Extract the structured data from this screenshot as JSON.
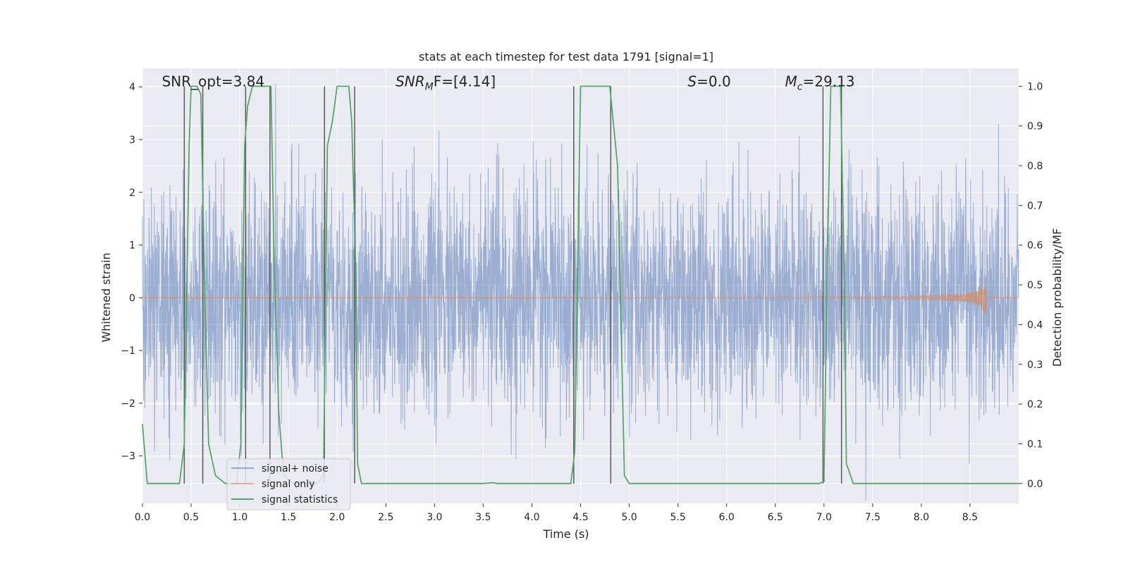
{
  "chart_data": {
    "type": "line",
    "title": "stats at each timestep for test data 1791 [signal=1]",
    "xlabel": "Time (s)",
    "ylabel": "Whitened strain",
    "y2label": "Detection probability/MF",
    "xlim": [
      0.0,
      9.0
    ],
    "ylim": [
      -3.9,
      4.35
    ],
    "y2lim": [
      -0.05,
      1.045
    ],
    "x_ticks": [
      "0.0",
      "0.5",
      "1.0",
      "1.5",
      "2.0",
      "2.5",
      "3.0",
      "3.5",
      "4.0",
      "4.5",
      "5.0",
      "5.5",
      "6.0",
      "6.5",
      "7.0",
      "7.5",
      "8.0",
      "8.5"
    ],
    "y_ticks": [
      "4",
      "3",
      "2",
      "1",
      "0",
      "−1",
      "−2",
      "−3"
    ],
    "y2_ticks": [
      "1.0",
      "0.9",
      "0.8",
      "0.7",
      "0.6",
      "0.5",
      "0.4",
      "0.3",
      "0.2",
      "0.1",
      "0.0"
    ],
    "grid": true,
    "legend_position": "lower-left",
    "annotations": [
      {
        "label": "SNR_opt=3.84",
        "prefix": "SNR_opt=3.84",
        "sym": "",
        "sub": "",
        "suffix": "",
        "x": 0.2,
        "y": 4.1
      },
      {
        "label": "SNR_MF=[4.14]",
        "prefix": "",
        "sym": "SNR",
        "sub": "M",
        "suffix": "F=[4.14]",
        "x": 2.6,
        "y": 4.1
      },
      {
        "label": "S=0.0",
        "prefix": "",
        "sym": "S",
        "sub": "",
        "suffix": "=0.0",
        "x": 5.6,
        "y": 4.1
      },
      {
        "label": "M_c=29.13",
        "prefix": "",
        "sym": "M",
        "sub": "c",
        "suffix": "=29.13",
        "x": 6.6,
        "y": 4.1
      }
    ],
    "series": [
      {
        "name": "signal+ noise",
        "color": "#4c72b0",
        "axis": "left",
        "description": "whitened noisy strain, roughly Gaussian around 0 with amplitude ~1.5, peaks to about +/-3.5",
        "noise_std": 1.05,
        "x_range": [
          0.0,
          9.0
        ]
      },
      {
        "name": "signal only",
        "color": "#dd8452",
        "axis": "left",
        "chirp_start": 4.4,
        "chirp_end": 8.67,
        "peak_amplitude": 0.9
      },
      {
        "name": "signal statistics",
        "color": "#55a868",
        "axis": "right",
        "x": [
          0.0,
          0.05,
          0.15,
          0.38,
          0.43,
          0.48,
          0.5,
          0.56,
          0.6,
          0.64,
          0.68,
          0.75,
          0.85,
          0.97,
          1.01,
          1.05,
          1.08,
          1.13,
          1.18,
          1.32,
          1.35,
          1.4,
          1.45,
          1.55,
          1.8,
          1.86,
          1.9,
          1.95,
          2.0,
          2.12,
          2.15,
          2.19,
          2.21,
          2.25,
          2.6,
          3.5,
          3.6,
          3.65,
          4.4,
          4.44,
          4.5,
          4.6,
          4.8,
          4.88,
          4.95,
          5.0,
          5.5,
          6.5,
          6.95,
          7.0,
          7.03,
          7.07,
          7.17,
          7.21,
          7.23,
          7.3,
          7.6,
          8.0,
          8.4,
          9.0
        ],
        "y": [
          0.15,
          0.0,
          -0.0,
          -0.0,
          0.1,
          0.85,
          1.0,
          1.0,
          0.98,
          0.48,
          0.1,
          0.02,
          0.0,
          0.0,
          0.1,
          0.85,
          0.95,
          1.0,
          1.0,
          1.0,
          0.6,
          0.18,
          0.02,
          0.0,
          0.0,
          0.02,
          0.85,
          0.91,
          1.0,
          1.0,
          0.91,
          0.55,
          0.05,
          0.0,
          0.0,
          0.0,
          0.002,
          0.0,
          0.0,
          0.08,
          1.0,
          1.0,
          1.0,
          0.8,
          0.02,
          0.0,
          0.0,
          0.0,
          0.0,
          0.005,
          0.5,
          1.0,
          1.0,
          0.5,
          0.05,
          0.0,
          0.0,
          0.0,
          0.0,
          0.0
        ]
      },
      {
        "name": "",
        "color": "#595959",
        "axis": "vertical-lines",
        "x": [
          0.43,
          0.62,
          1.06,
          1.31,
          1.87,
          2.18,
          4.43,
          4.81,
          6.99,
          7.18
        ]
      }
    ]
  }
}
